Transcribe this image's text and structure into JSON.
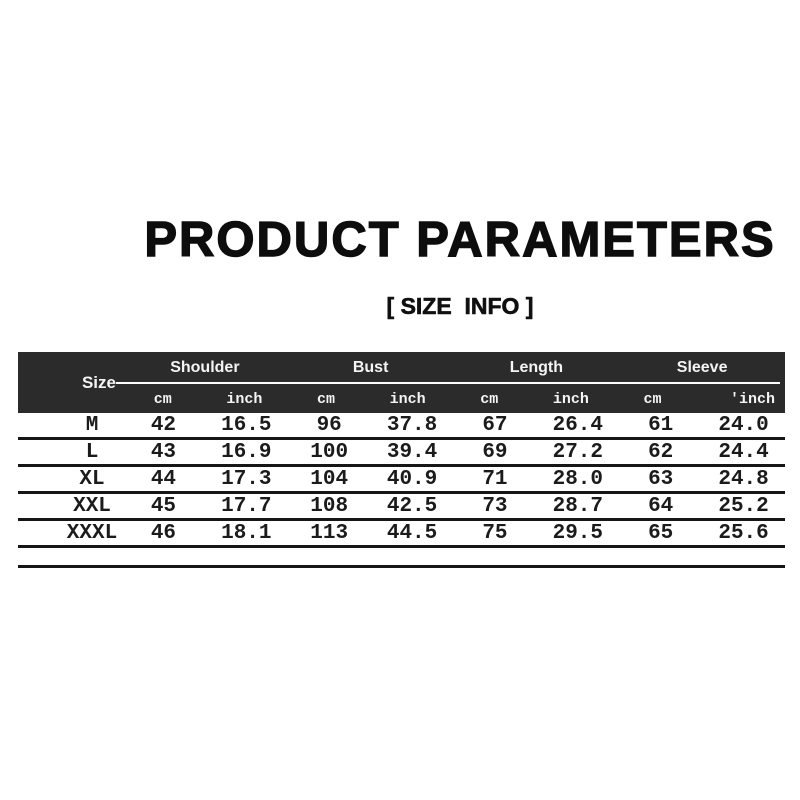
{
  "page": {
    "title": "PRODUCT PARAMETERS",
    "subtitle": "[ SIZE  INFO ]"
  },
  "table": {
    "corner_label": "Size",
    "group_headers": [
      "Shoulder",
      "Bust",
      "Length",
      "Sleeve"
    ],
    "unit_headers": [
      "cm",
      "inch",
      "cm",
      "inch",
      "cm",
      "inch",
      "cm",
      "'inch"
    ],
    "rows": [
      {
        "size": "M",
        "cells": [
          "42",
          "16.5",
          "96",
          "37.8",
          "67",
          "26.4",
          "61",
          "24.0"
        ]
      },
      {
        "size": "L",
        "cells": [
          "43",
          "16.9",
          "100",
          "39.4",
          "69",
          "27.2",
          "62",
          "24.4"
        ]
      },
      {
        "size": "XL",
        "cells": [
          "44",
          "17.3",
          "104",
          "40.9",
          "71",
          "28.0",
          "63",
          "24.8"
        ]
      },
      {
        "size": "XXL",
        "cells": [
          "45",
          "17.7",
          "108",
          "42.5",
          "73",
          "28.7",
          "64",
          "25.2"
        ]
      },
      {
        "size": "XXXL",
        "cells": [
          "46",
          "18.1",
          "113",
          "44.5",
          "75",
          "29.5",
          "65",
          "25.6"
        ]
      }
    ],
    "colors": {
      "header_background": "#2b2b2b",
      "header_text": "#f4f4f4",
      "rule_line": "#161616",
      "body_text": "#1b1b1b",
      "page_background": "#ffffff"
    }
  }
}
